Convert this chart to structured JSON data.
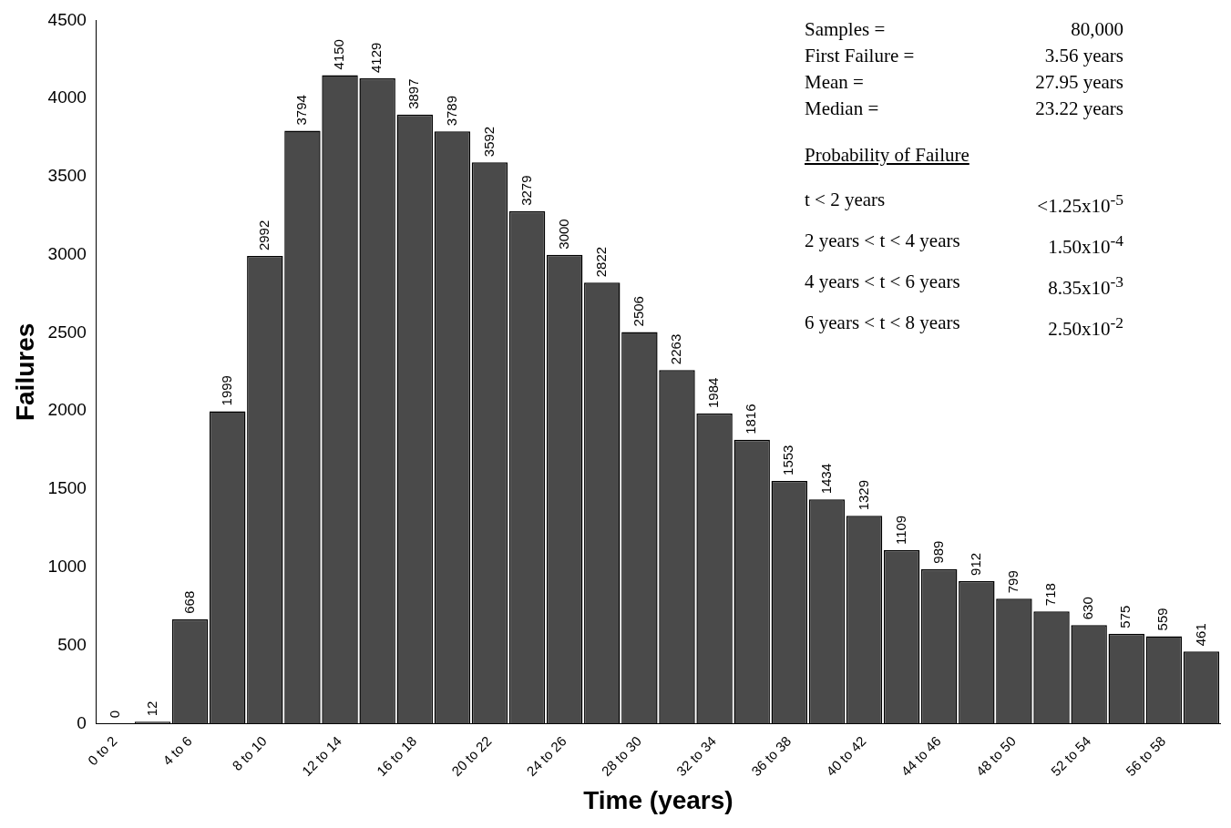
{
  "chart_data": {
    "type": "bar",
    "xlabel": "Time (years)",
    "ylabel": "Failures",
    "categories": [
      "0 to 2",
      null,
      "4 to 6",
      null,
      "8 to 10",
      null,
      "12 to 14",
      null,
      "16 to 18",
      null,
      "20 to 22",
      null,
      "24 to 26",
      null,
      "28 to 30",
      null,
      "32 to 34",
      null,
      "36 to 38",
      null,
      "40 to 42",
      null,
      "44 to 46",
      null,
      "48 to 50",
      null,
      "52 to 54",
      null,
      "56 to 58",
      null
    ],
    "values": [
      0,
      12,
      668,
      1999,
      2992,
      3794,
      4150,
      4129,
      3897,
      3789,
      3592,
      3279,
      3000,
      2822,
      2506,
      2263,
      1984,
      1816,
      1553,
      1434,
      1329,
      1109,
      989,
      912,
      799,
      718,
      630,
      575,
      559,
      461
    ],
    "color": "#4a4a4a",
    "ylim": [
      0,
      4500
    ],
    "yticks": [
      0,
      500,
      1000,
      1500,
      2000,
      2500,
      3000,
      3500,
      4000,
      4500
    ],
    "grid": false,
    "legend": false,
    "data_labels": true,
    "annotations": [
      "Samples =",
      "80,000",
      "First Failure =",
      "3.56 years",
      "Mean =",
      "27.95 years",
      "Median =",
      "23.22 years",
      "Probability of Failure",
      "t < 2 years",
      "<1.25x10$^{-5}$",
      "2 years < t < 4 years",
      "1.50x10$^{-4}$",
      "4 years < t < 6 years",
      "8.35x10$^{-3}$",
      "6 years < t < 8 years",
      "2.50x10$^{-2}$"
    ]
  }
}
